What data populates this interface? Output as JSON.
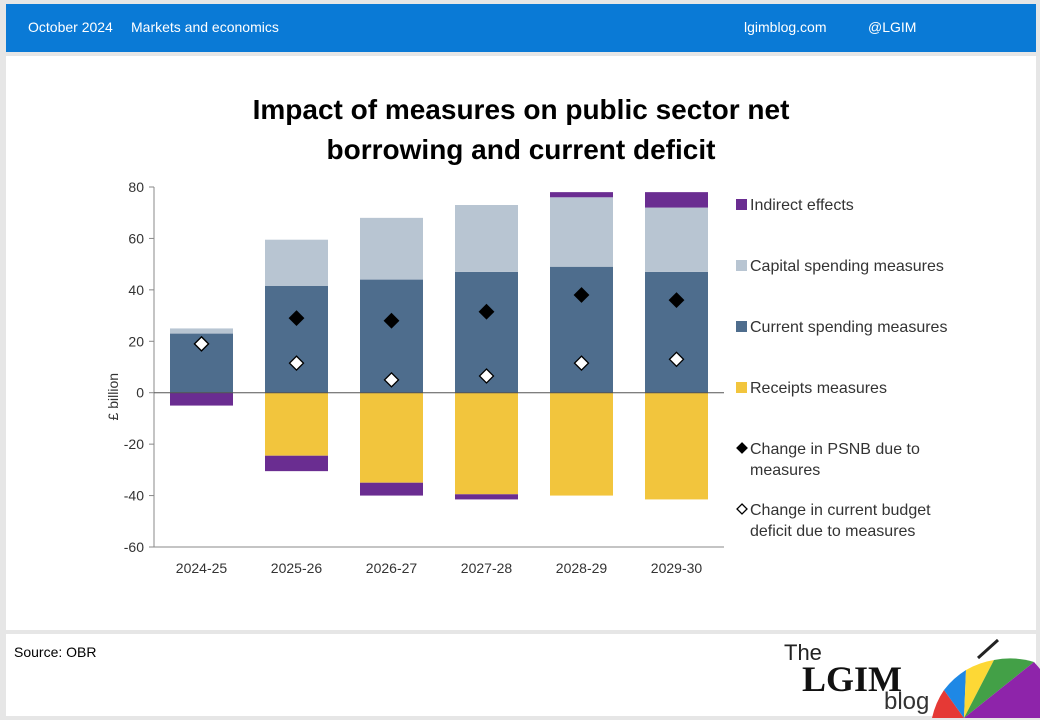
{
  "header": {
    "date": "October 2024",
    "category": "Markets and economics",
    "site": "lgimblog.com",
    "handle": "@LGIM"
  },
  "chart_title_line1": "Impact of measures on public sector net",
  "chart_title_line2": "borrowing and current deficit",
  "footer": {
    "source": "Source: OBR",
    "logo_the": "The",
    "logo_lgim": "LGIM",
    "logo_blog": "blog"
  },
  "colors": {
    "indirect": "#6a2d91",
    "capital": "#b8c5d2",
    "current": "#4e6d8d",
    "receipts": "#f2c53d",
    "topbar": "#0a7ad6"
  },
  "chart_data": {
    "type": "bar",
    "stacked": true,
    "ylabel": "£ billion",
    "ylim": [
      -60,
      80
    ],
    "yticks": [
      80,
      60,
      40,
      20,
      0,
      -20,
      -40,
      -60
    ],
    "categories": [
      "2024-25",
      "2025-26",
      "2026-27",
      "2027-28",
      "2028-29",
      "2029-30"
    ],
    "series": [
      {
        "name": "Indirect effects",
        "values": [
          -5,
          -6,
          -5,
          -2,
          2,
          6
        ]
      },
      {
        "name": "Capital spending measures",
        "values": [
          2,
          18,
          24,
          26,
          27,
          25
        ]
      },
      {
        "name": "Current spending measures",
        "values": [
          23,
          41.5,
          44,
          47,
          49,
          47
        ]
      },
      {
        "name": "Receipts measures",
        "values": [
          0,
          -24.5,
          -35,
          -39.5,
          -40,
          -41.5
        ]
      }
    ],
    "markers": [
      {
        "name": "Change in PSNB due to measures",
        "values": [
          19,
          29,
          28,
          31.5,
          38,
          36
        ]
      },
      {
        "name": "Change in current budget deficit due to measures",
        "values": [
          19,
          11.5,
          5,
          6.5,
          11.5,
          13
        ]
      }
    ],
    "legend_position": "right",
    "legend": [
      {
        "lines": [
          "Indirect effects"
        ]
      },
      {
        "lines": [
          "Capital spending measures"
        ]
      },
      {
        "lines": [
          "Current spending measures"
        ]
      },
      {
        "lines": [
          "Receipts measures"
        ]
      },
      {
        "lines": [
          "Change in PSNB due to",
          "measures"
        ]
      },
      {
        "lines": [
          "Change in current budget",
          "deficit due to measures"
        ]
      }
    ]
  }
}
